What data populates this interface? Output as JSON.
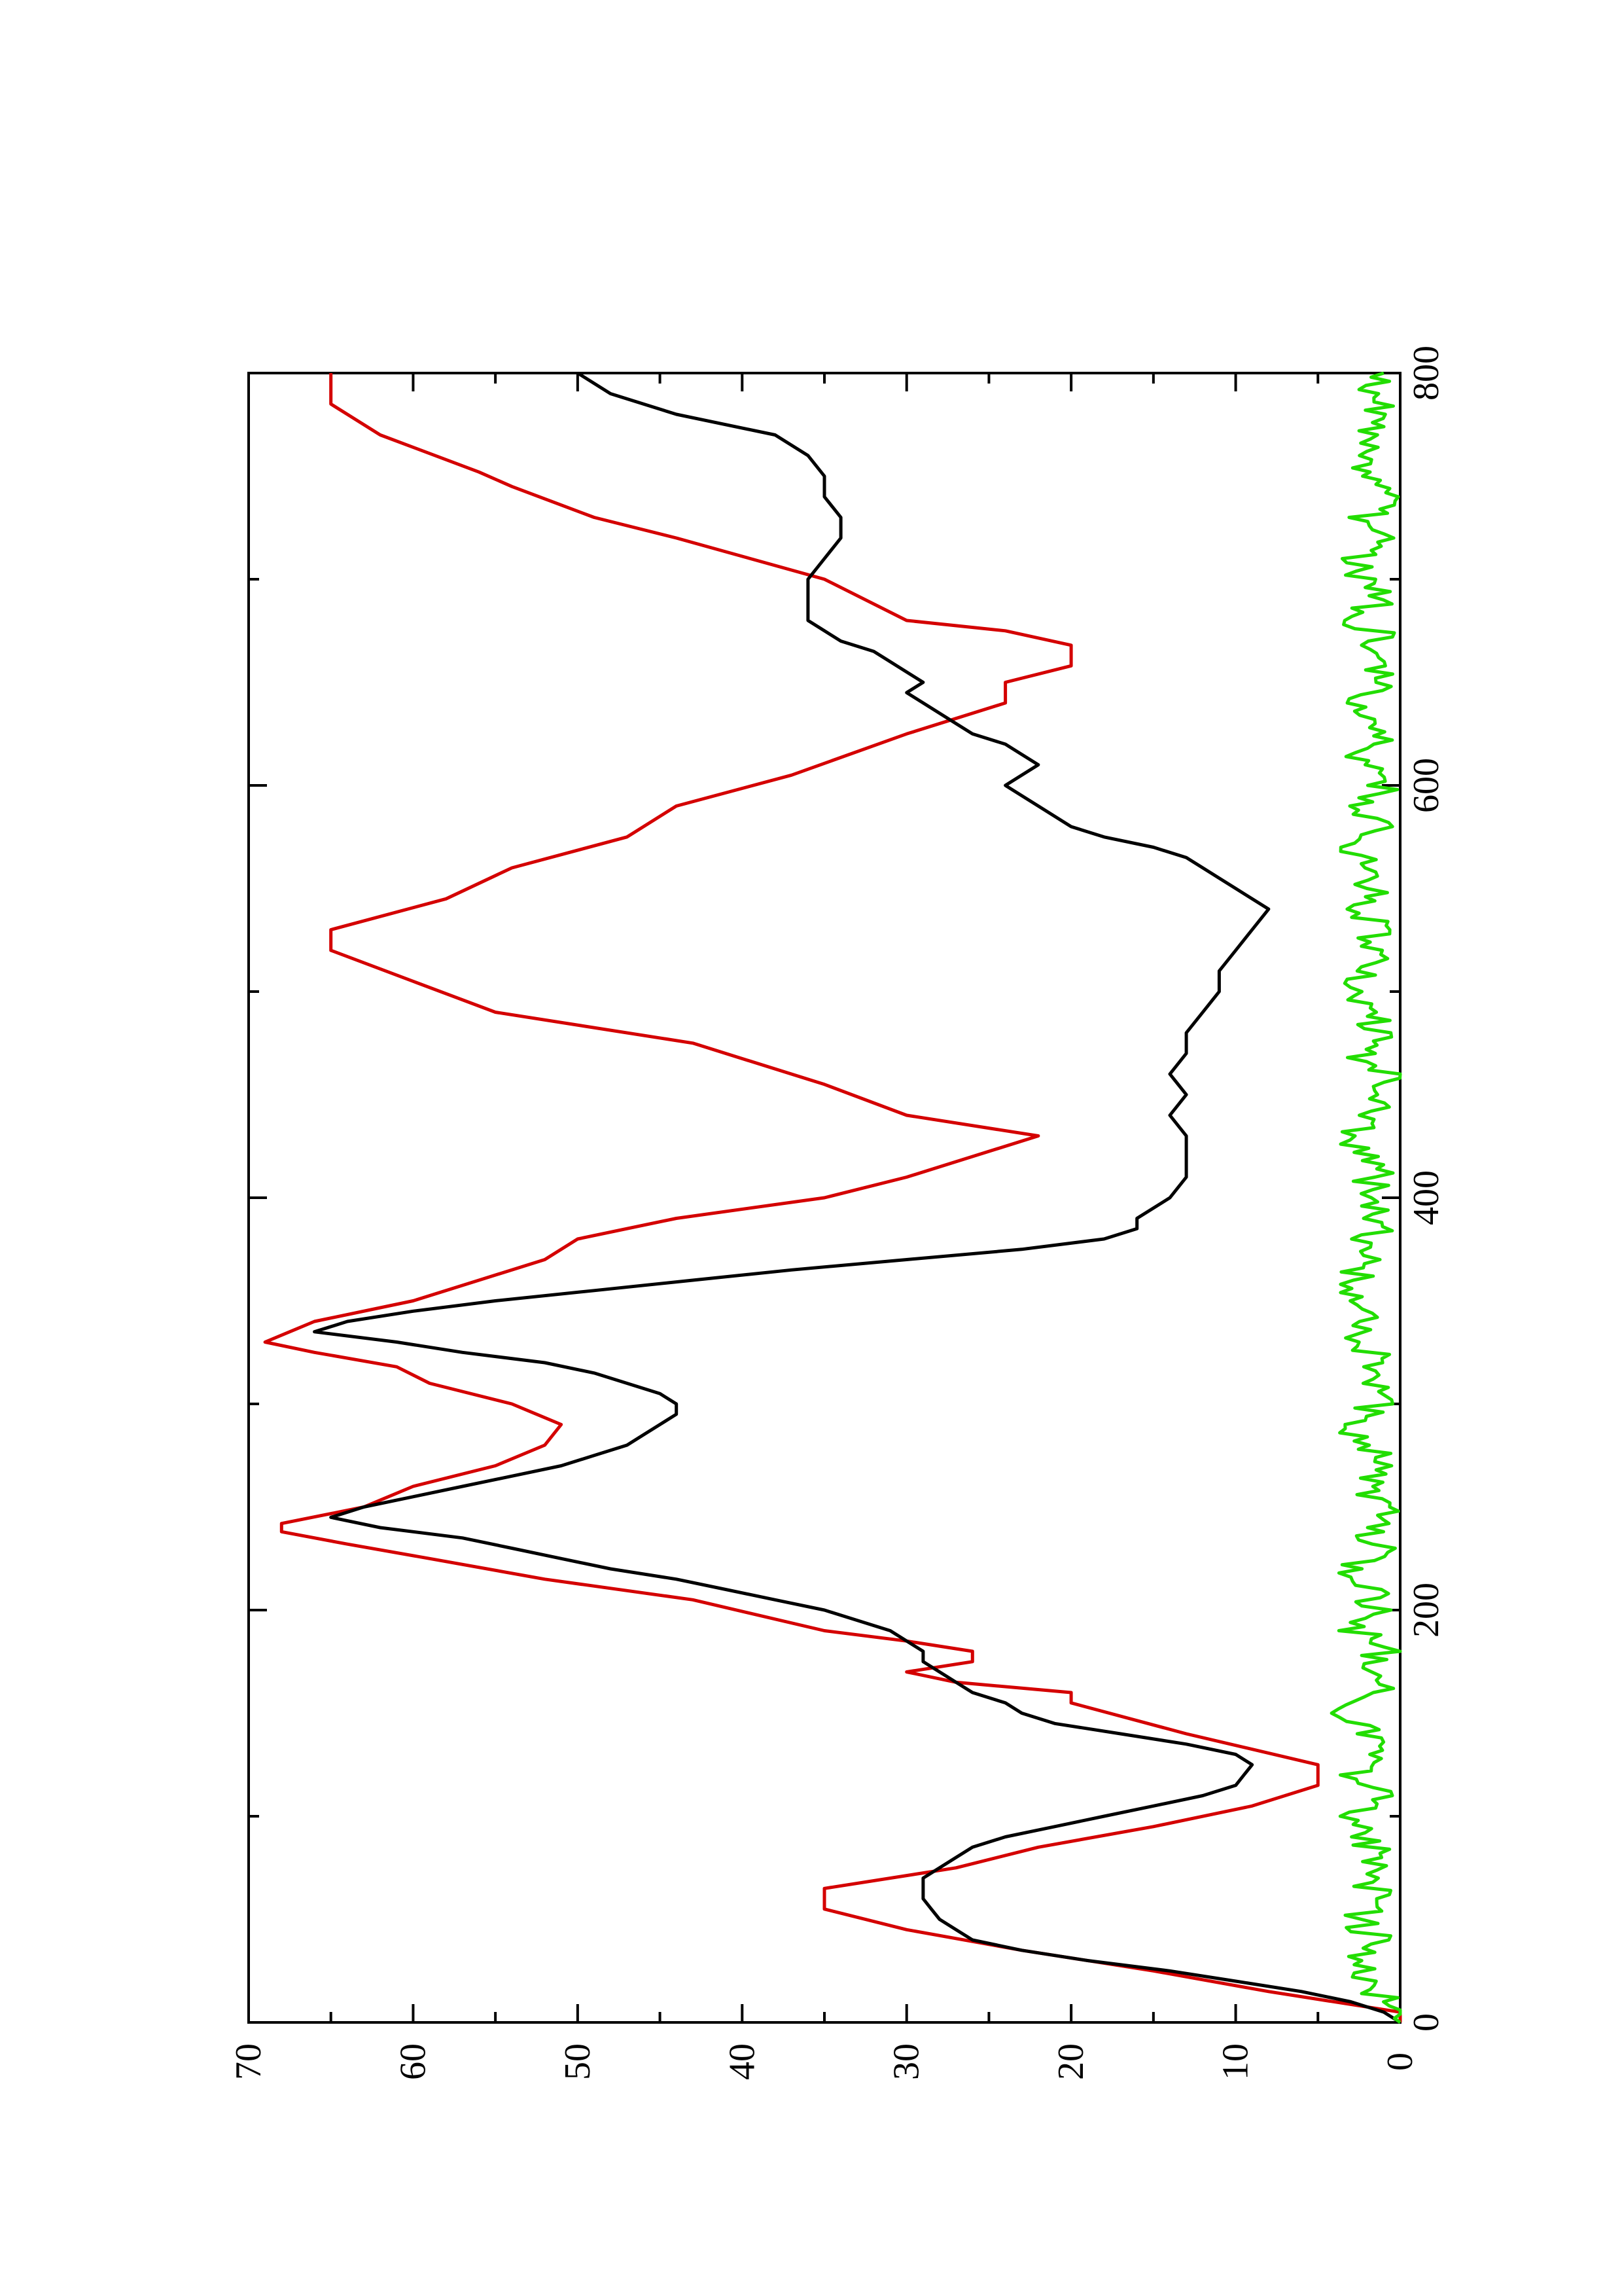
{
  "chart_data": {
    "type": "line",
    "orientation": "rotated-90-ccw",
    "title": "",
    "xlabel": "",
    "ylabel": "",
    "xlim": [
      0,
      800
    ],
    "ylim": [
      0,
      70
    ],
    "x_ticks": [
      0,
      200,
      400,
      600,
      800
    ],
    "y_ticks": [
      0,
      10,
      20,
      30,
      40,
      50,
      60,
      70
    ],
    "grid": false,
    "legend": "none",
    "series": [
      {
        "color": "#d40000",
        "style": "stepped",
        "points": [
          [
            0,
            0
          ],
          [
            5,
            0
          ],
          [
            15,
            8
          ],
          [
            25,
            15
          ],
          [
            35,
            23
          ],
          [
            45,
            30
          ],
          [
            55,
            35
          ],
          [
            65,
            35
          ],
          [
            75,
            27
          ],
          [
            85,
            22
          ],
          [
            95,
            15
          ],
          [
            105,
            9
          ],
          [
            115,
            5
          ],
          [
            125,
            5
          ],
          [
            140,
            13
          ],
          [
            155,
            20
          ],
          [
            160,
            20
          ],
          [
            165,
            27
          ],
          [
            170,
            30
          ],
          [
            175,
            26
          ],
          [
            180,
            26
          ],
          [
            185,
            30
          ],
          [
            190,
            35
          ],
          [
            205,
            43
          ],
          [
            215,
            52
          ],
          [
            225,
            59
          ],
          [
            232,
            64
          ],
          [
            238,
            68
          ],
          [
            242,
            68
          ],
          [
            250,
            63
          ],
          [
            260,
            60
          ],
          [
            270,
            55
          ],
          [
            280,
            52
          ],
          [
            290,
            51
          ],
          [
            300,
            54
          ],
          [
            310,
            59
          ],
          [
            318,
            61
          ],
          [
            325,
            66
          ],
          [
            330,
            69
          ],
          [
            340,
            66
          ],
          [
            350,
            60
          ],
          [
            360,
            56
          ],
          [
            370,
            52
          ],
          [
            380,
            50
          ],
          [
            390,
            44
          ],
          [
            400,
            35
          ],
          [
            410,
            30
          ],
          [
            420,
            26
          ],
          [
            430,
            22
          ],
          [
            440,
            30
          ],
          [
            455,
            35
          ],
          [
            475,
            43
          ],
          [
            490,
            55
          ],
          [
            505,
            60
          ],
          [
            520,
            65
          ],
          [
            530,
            65
          ],
          [
            545,
            58
          ],
          [
            560,
            54
          ],
          [
            575,
            47
          ],
          [
            590,
            44
          ],
          [
            605,
            37
          ],
          [
            625,
            30
          ],
          [
            640,
            24
          ],
          [
            650,
            24
          ],
          [
            658,
            20
          ],
          [
            668,
            20
          ],
          [
            675,
            24
          ],
          [
            680,
            30
          ],
          [
            700,
            35
          ],
          [
            720,
            44
          ],
          [
            730,
            49
          ],
          [
            745,
            54
          ],
          [
            752,
            56
          ],
          [
            770,
            62
          ],
          [
            785,
            65
          ],
          [
            800,
            65
          ]
        ]
      },
      {
        "color": "#000000",
        "style": "line",
        "points": [
          [
            0,
            0
          ],
          [
            5,
            1
          ],
          [
            10,
            3
          ],
          [
            15,
            6
          ],
          [
            20,
            10
          ],
          [
            25,
            14
          ],
          [
            30,
            19
          ],
          [
            35,
            23
          ],
          [
            40,
            26
          ],
          [
            45,
            27
          ],
          [
            50,
            28
          ],
          [
            55,
            28.5
          ],
          [
            60,
            29
          ],
          [
            65,
            29
          ],
          [
            70,
            29
          ],
          [
            75,
            28
          ],
          [
            80,
            27
          ],
          [
            85,
            26
          ],
          [
            90,
            24
          ],
          [
            95,
            21
          ],
          [
            100,
            18
          ],
          [
            105,
            15
          ],
          [
            110,
            12
          ],
          [
            115,
            10
          ],
          [
            120,
            9.5
          ],
          [
            125,
            9
          ],
          [
            130,
            10
          ],
          [
            135,
            13
          ],
          [
            140,
            17
          ],
          [
            145,
            21
          ],
          [
            150,
            23
          ],
          [
            155,
            24
          ],
          [
            160,
            26
          ],
          [
            165,
            27
          ],
          [
            170,
            28
          ],
          [
            175,
            29
          ],
          [
            180,
            29
          ],
          [
            185,
            30
          ],
          [
            190,
            31
          ],
          [
            195,
            33
          ],
          [
            200,
            35
          ],
          [
            205,
            38
          ],
          [
            210,
            41
          ],
          [
            215,
            44
          ],
          [
            220,
            48
          ],
          [
            225,
            51
          ],
          [
            230,
            54
          ],
          [
            235,
            57
          ],
          [
            240,
            62
          ],
          [
            245,
            65
          ],
          [
            250,
            63
          ],
          [
            255,
            60
          ],
          [
            260,
            57
          ],
          [
            265,
            54
          ],
          [
            270,
            51
          ],
          [
            275,
            49
          ],
          [
            280,
            47
          ],
          [
            285,
            46
          ],
          [
            290,
            45
          ],
          [
            295,
            44
          ],
          [
            300,
            44
          ],
          [
            305,
            45
          ],
          [
            310,
            47
          ],
          [
            315,
            49
          ],
          [
            320,
            52
          ],
          [
            325,
            57
          ],
          [
            330,
            61
          ],
          [
            335,
            66
          ],
          [
            340,
            64
          ],
          [
            345,
            60
          ],
          [
            350,
            55
          ],
          [
            355,
            49
          ],
          [
            360,
            43
          ],
          [
            365,
            37
          ],
          [
            370,
            30
          ],
          [
            375,
            23
          ],
          [
            380,
            18
          ],
          [
            385,
            16
          ],
          [
            390,
            16
          ],
          [
            395,
            15
          ],
          [
            400,
            14
          ],
          [
            410,
            13
          ],
          [
            420,
            13
          ],
          [
            430,
            13
          ],
          [
            440,
            14
          ],
          [
            450,
            13
          ],
          [
            460,
            14
          ],
          [
            470,
            13
          ],
          [
            480,
            13
          ],
          [
            490,
            12
          ],
          [
            500,
            11
          ],
          [
            510,
            11
          ],
          [
            520,
            10
          ],
          [
            530,
            9
          ],
          [
            540,
            8
          ],
          [
            545,
            9
          ],
          [
            550,
            10
          ],
          [
            555,
            11
          ],
          [
            560,
            12
          ],
          [
            565,
            13
          ],
          [
            570,
            15
          ],
          [
            575,
            18
          ],
          [
            580,
            20
          ],
          [
            585,
            21
          ],
          [
            590,
            22
          ],
          [
            595,
            23
          ],
          [
            600,
            24
          ],
          [
            605,
            23
          ],
          [
            610,
            22
          ],
          [
            615,
            23
          ],
          [
            620,
            24
          ],
          [
            625,
            26
          ],
          [
            630,
            27
          ],
          [
            635,
            28
          ],
          [
            640,
            29
          ],
          [
            645,
            30
          ],
          [
            650,
            29
          ],
          [
            655,
            30
          ],
          [
            660,
            31
          ],
          [
            665,
            32
          ],
          [
            670,
            34
          ],
          [
            675,
            35
          ],
          [
            680,
            36
          ],
          [
            690,
            36
          ],
          [
            700,
            36
          ],
          [
            710,
            35
          ],
          [
            720,
            34
          ],
          [
            730,
            34
          ],
          [
            740,
            35
          ],
          [
            750,
            35
          ],
          [
            760,
            36
          ],
          [
            770,
            38
          ],
          [
            780,
            44
          ],
          [
            790,
            48
          ],
          [
            800,
            50
          ]
        ]
      },
      {
        "color": "#22dd00",
        "style": "noisy",
        "points": [
          [
            0,
            0
          ],
          [
            10,
            1
          ],
          [
            20,
            2
          ],
          [
            30,
            3
          ],
          [
            40,
            1.5
          ],
          [
            50,
            2.5
          ],
          [
            60,
            1
          ],
          [
            70,
            2
          ],
          [
            80,
            1.5
          ],
          [
            90,
            2
          ],
          [
            100,
            3
          ],
          [
            110,
            1.5
          ],
          [
            120,
            2.5
          ],
          [
            130,
            1
          ],
          [
            140,
            2
          ],
          [
            150,
            3
          ],
          [
            160,
            1.5
          ],
          [
            170,
            2
          ],
          [
            180,
            1
          ],
          [
            190,
            2.5
          ],
          [
            200,
            1.5
          ],
          [
            210,
            2
          ],
          [
            220,
            3
          ],
          [
            230,
            1.5
          ],
          [
            240,
            2
          ],
          [
            250,
            1
          ],
          [
            260,
            2.5
          ],
          [
            270,
            1.5
          ],
          [
            280,
            2
          ],
          [
            290,
            3
          ],
          [
            300,
            1.5
          ],
          [
            310,
            2
          ],
          [
            320,
            1
          ],
          [
            330,
            2.5
          ],
          [
            340,
            1.5
          ],
          [
            350,
            2
          ],
          [
            360,
            3
          ],
          [
            370,
            1.5
          ],
          [
            380,
            2
          ],
          [
            390,
            1
          ],
          [
            400,
            2.5
          ],
          [
            410,
            1.5
          ],
          [
            420,
            2
          ],
          [
            430,
            3
          ],
          [
            440,
            1.5
          ],
          [
            450,
            2
          ],
          [
            460,
            1
          ],
          [
            470,
            2.5
          ],
          [
            480,
            1.5
          ],
          [
            490,
            2
          ],
          [
            500,
            3
          ],
          [
            510,
            1.5
          ],
          [
            520,
            2
          ],
          [
            530,
            1
          ],
          [
            540,
            2.5
          ],
          [
            550,
            1.5
          ],
          [
            560,
            2
          ],
          [
            570,
            3
          ],
          [
            580,
            1.5
          ],
          [
            590,
            2
          ],
          [
            600,
            1
          ],
          [
            610,
            2.5
          ],
          [
            620,
            1.5
          ],
          [
            630,
            2
          ],
          [
            640,
            3
          ],
          [
            650,
            1.5
          ],
          [
            660,
            2
          ],
          [
            670,
            1
          ],
          [
            680,
            2.5
          ],
          [
            690,
            1.5
          ],
          [
            700,
            2
          ],
          [
            710,
            3
          ],
          [
            720,
            1.5
          ],
          [
            730,
            2
          ],
          [
            740,
            1
          ],
          [
            750,
            2.5
          ],
          [
            760,
            1.5
          ],
          [
            770,
            2
          ],
          [
            780,
            1
          ],
          [
            790,
            2
          ],
          [
            800,
            1
          ]
        ]
      }
    ]
  }
}
